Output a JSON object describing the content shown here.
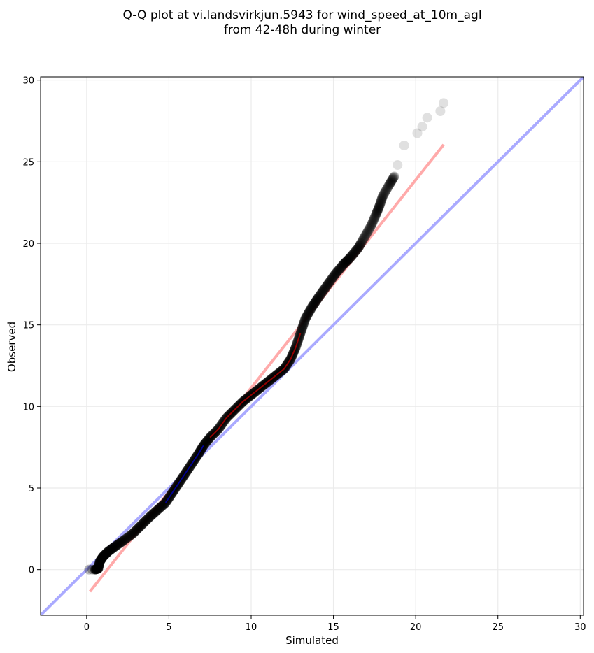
{
  "chart_data": {
    "type": "scatter",
    "title_lines": [
      "Q-Q plot at vi.landsvirkjun.5943 for wind_speed_at_10m_agl",
      "from 42-48h during winter"
    ],
    "xlabel": "Simulated",
    "ylabel": "Observed",
    "xlim": [
      -2.8,
      30.2
    ],
    "ylim": [
      -2.8,
      30.2
    ],
    "xticks": [
      "0",
      "5",
      "10",
      "15",
      "20",
      "25",
      "30"
    ],
    "yticks": [
      "0",
      "5",
      "10",
      "15",
      "20",
      "25",
      "30"
    ],
    "grid": true,
    "identity_line": {
      "from": [
        -2.8,
        -2.8
      ],
      "to": [
        30.2,
        30.2
      ],
      "color": "#aaaaff"
    },
    "fit_line": {
      "from": [
        0.2,
        -1.35
      ],
      "to": [
        21.7,
        26.05
      ],
      "color": "#ffaaaa"
    },
    "quantile_curve": [
      [
        0.5,
        0.0
      ],
      [
        0.7,
        0.05
      ],
      [
        0.8,
        0.5
      ],
      [
        1.0,
        0.8
      ],
      [
        1.3,
        1.1
      ],
      [
        1.7,
        1.4
      ],
      [
        2.2,
        1.75
      ],
      [
        2.8,
        2.2
      ],
      [
        3.3,
        2.7
      ],
      [
        3.8,
        3.2
      ],
      [
        4.3,
        3.65
      ],
      [
        4.8,
        4.1
      ],
      [
        5.2,
        4.7
      ],
      [
        5.6,
        5.3
      ],
      [
        6.0,
        5.9
      ],
      [
        6.4,
        6.5
      ],
      [
        6.8,
        7.1
      ],
      [
        7.1,
        7.6
      ],
      [
        7.5,
        8.1
      ],
      [
        8.0,
        8.6
      ],
      [
        8.5,
        9.3
      ],
      [
        9.0,
        9.8
      ],
      [
        9.5,
        10.3
      ],
      [
        10.0,
        10.7
      ],
      [
        10.5,
        11.1
      ],
      [
        11.0,
        11.5
      ],
      [
        11.5,
        11.9
      ],
      [
        12.0,
        12.3
      ],
      [
        12.4,
        12.9
      ],
      [
        12.7,
        13.6
      ],
      [
        13.0,
        14.5
      ],
      [
        13.3,
        15.4
      ],
      [
        13.7,
        16.1
      ],
      [
        14.1,
        16.7
      ],
      [
        14.6,
        17.4
      ],
      [
        15.1,
        18.1
      ],
      [
        15.6,
        18.7
      ],
      [
        16.0,
        19.1
      ],
      [
        16.5,
        19.7
      ],
      [
        16.9,
        20.4
      ],
      [
        17.3,
        21.1
      ],
      [
        17.6,
        21.8
      ],
      [
        17.8,
        22.3
      ],
      [
        18.0,
        22.9
      ],
      [
        18.4,
        23.6
      ],
      [
        18.7,
        24.1
      ]
    ],
    "lower_points": [
      [
        0.15,
        0.0
      ],
      [
        0.35,
        0.0
      ]
    ],
    "upper_tail_points": [
      [
        18.9,
        24.8
      ],
      [
        19.3,
        26.0
      ],
      [
        20.1,
        26.75
      ],
      [
        20.4,
        27.15
      ],
      [
        20.7,
        27.7
      ],
      [
        21.5,
        28.1
      ],
      [
        21.7,
        28.6
      ]
    ],
    "overlay_segments": [
      {
        "color": "#0000aa",
        "from": 4.8,
        "to": 7.3
      },
      {
        "color": "#aa0000",
        "from": 7.3,
        "to": 13.0
      }
    ]
  }
}
